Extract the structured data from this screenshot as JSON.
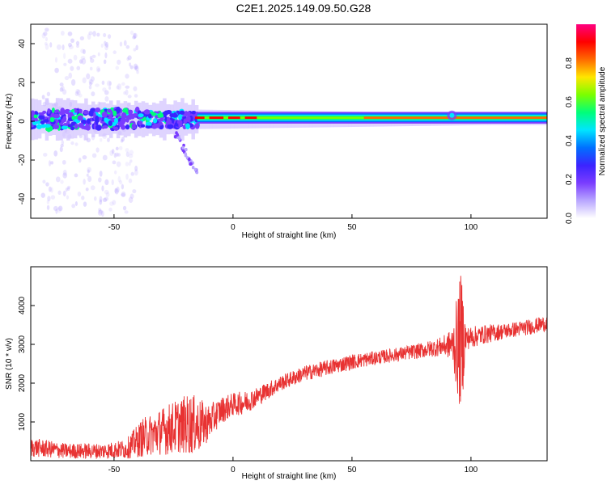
{
  "title": "C2E1.2025.149.09.50.G28",
  "colors": {
    "snr_line": "#e83232",
    "colormap": [
      "#ffffff",
      "#b9a7ff",
      "#7a3cff",
      "#3b24ff",
      "#0070ff",
      "#00e5ff",
      "#00ff7a",
      "#7aff00",
      "#ffe600",
      "#ff6a00",
      "#ff0000",
      "#ff0080"
    ]
  },
  "chart_data": [
    {
      "type": "heatmap",
      "xlabel": "Height of straight line (km)",
      "ylabel": "Frequency (Hz)",
      "xlim": [
        -85,
        132
      ],
      "ylim": [
        -50,
        50
      ],
      "xticks": [
        -50,
        0,
        50,
        100
      ],
      "yticks": [
        -40,
        -20,
        0,
        20,
        40
      ],
      "grid": false,
      "colorbar": {
        "label": "Normalized spectral amplitude",
        "range": [
          0.0,
          1.0
        ],
        "ticks": [
          "0.0",
          "0.2",
          "0.4",
          "0.6",
          "0.8"
        ]
      },
      "ridge": {
        "description_free": true,
        "center_hz": [
          {
            "x": -85,
            "f": 1
          },
          {
            "x": -60,
            "f": 0
          },
          {
            "x": -40,
            "f": 1
          },
          {
            "x": -20,
            "f": 1
          },
          {
            "x": 0,
            "f": 1
          },
          {
            "x": 50,
            "f": 1.5
          },
          {
            "x": 100,
            "f": 2
          },
          {
            "x": 132,
            "f": 2
          }
        ]
      }
    },
    {
      "type": "line",
      "xlabel": "Height of straight line (km)",
      "ylabel": "SNR (10 * v/v)",
      "xlim": [
        -85,
        132
      ],
      "ylim": [
        0,
        5000
      ],
      "xticks": [
        -50,
        0,
        50,
        100
      ],
      "yticks": [
        1000,
        2000,
        3000,
        4000
      ],
      "grid": false,
      "series": [
        {
          "values_x": [
            -85,
            -70,
            -55,
            -45,
            -38,
            -33,
            -28,
            -23,
            -18,
            -14,
            -10,
            -5,
            0,
            5,
            10,
            20,
            30,
            40,
            50,
            60,
            70,
            80,
            88,
            92,
            95,
            96,
            98,
            105,
            115,
            125,
            132
          ],
          "values_y": [
            350,
            250,
            250,
            300,
            600,
            700,
            800,
            900,
            950,
            900,
            1000,
            1300,
            1450,
            1500,
            1650,
            2000,
            2250,
            2400,
            2550,
            2650,
            2750,
            2850,
            2950,
            3000,
            3000,
            3100,
            3150,
            3250,
            3350,
            3450,
            3550
          ],
          "noise_amplitude": [
            250,
            200,
            200,
            250,
            500,
            550,
            650,
            700,
            800,
            700,
            450,
            350,
            300,
            300,
            250,
            200,
            200,
            200,
            200,
            180,
            180,
            200,
            250,
            400,
            1600,
            1800,
            300,
            250,
            200,
            200,
            200
          ]
        }
      ]
    }
  ]
}
